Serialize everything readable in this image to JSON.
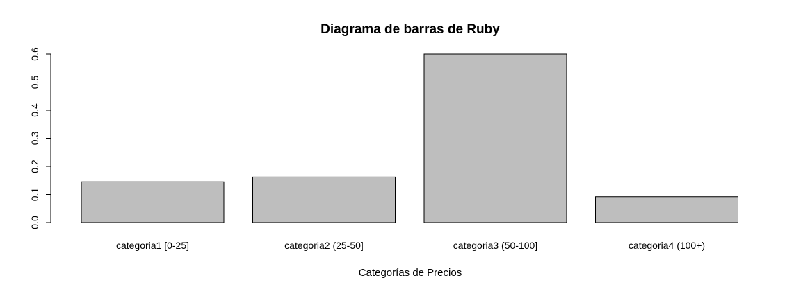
{
  "chart_data": {
    "type": "bar",
    "title": "Diagrama de barras de Ruby",
    "xlabel": "Categorías de Precios",
    "ylabel": "",
    "categories": [
      "categoria1 [0-25]",
      "categoria2 (25-50]",
      "categoria3 (50-100]",
      "categoria4 (100+)"
    ],
    "values": [
      0.145,
      0.162,
      0.6,
      0.092
    ],
    "ylim": [
      0,
      0.6
    ],
    "yticks": [
      0.0,
      0.1,
      0.2,
      0.3,
      0.4,
      0.5,
      0.6
    ],
    "ytick_labels": [
      "0.0",
      "0.1",
      "0.2",
      "0.3",
      "0.4",
      "0.5",
      "0.6"
    ],
    "grid": false,
    "legend": false,
    "bar_color": "#bebebe",
    "bar_edge_color": "#000000"
  }
}
